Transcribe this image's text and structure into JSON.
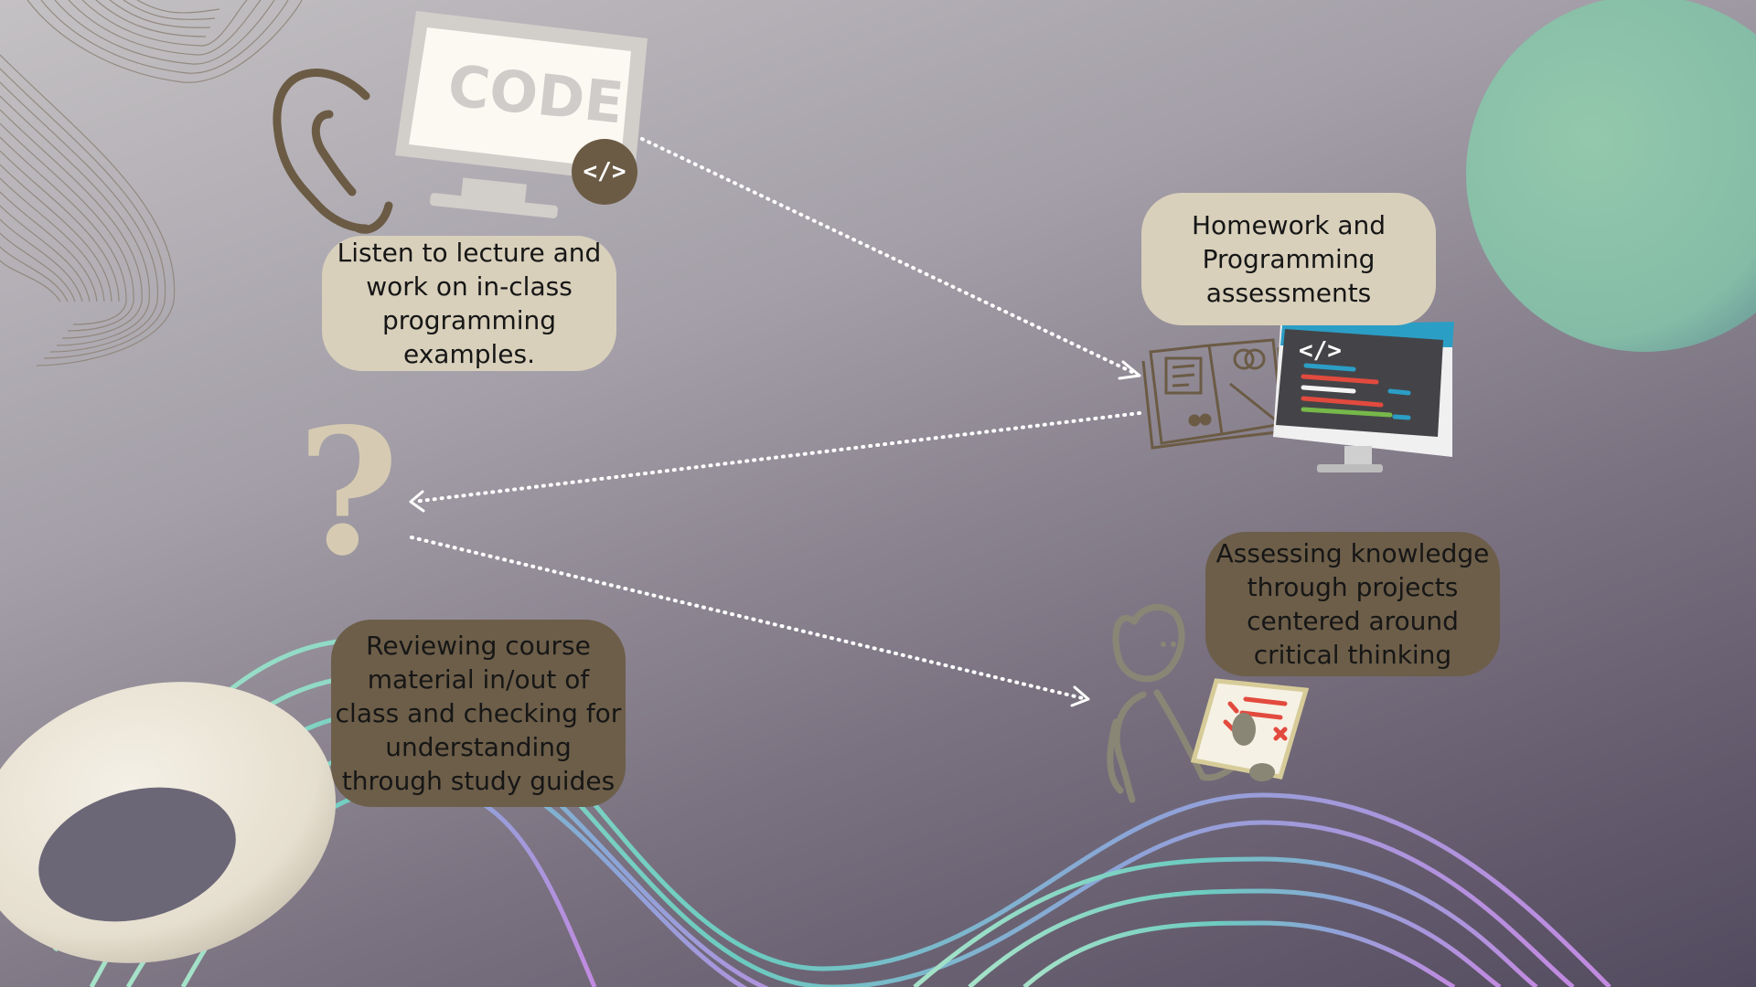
{
  "slide": {
    "nodes": [
      {
        "id": "lecture",
        "text": "Listen to lecture and work on in-class programming examples.",
        "style": "light"
      },
      {
        "id": "homework",
        "text": "Homework and Programming assessments",
        "style": "light"
      },
      {
        "id": "review",
        "text": "Reviewing course material  in/out of class and checking for understanding through study guides",
        "style": "dark"
      },
      {
        "id": "projects",
        "text": "Assessing knowledge through projects centered around critical thinking",
        "style": "dark"
      }
    ],
    "illustrations": {
      "monitor_word": "CODE",
      "code_tag": "</>",
      "editor_tag": "</>",
      "question_mark": "?"
    },
    "flow": [
      {
        "from": "lecture",
        "to": "homework"
      },
      {
        "from": "homework",
        "to": "review"
      },
      {
        "from": "review",
        "to": "projects"
      }
    ]
  },
  "colors": {
    "bubble_light": "#d8d0bb",
    "bubble_dark": "#6d5e49",
    "icon_brown": "#6b5b45",
    "sphere": "#8fc4a8",
    "arrow": "#ffffff"
  }
}
